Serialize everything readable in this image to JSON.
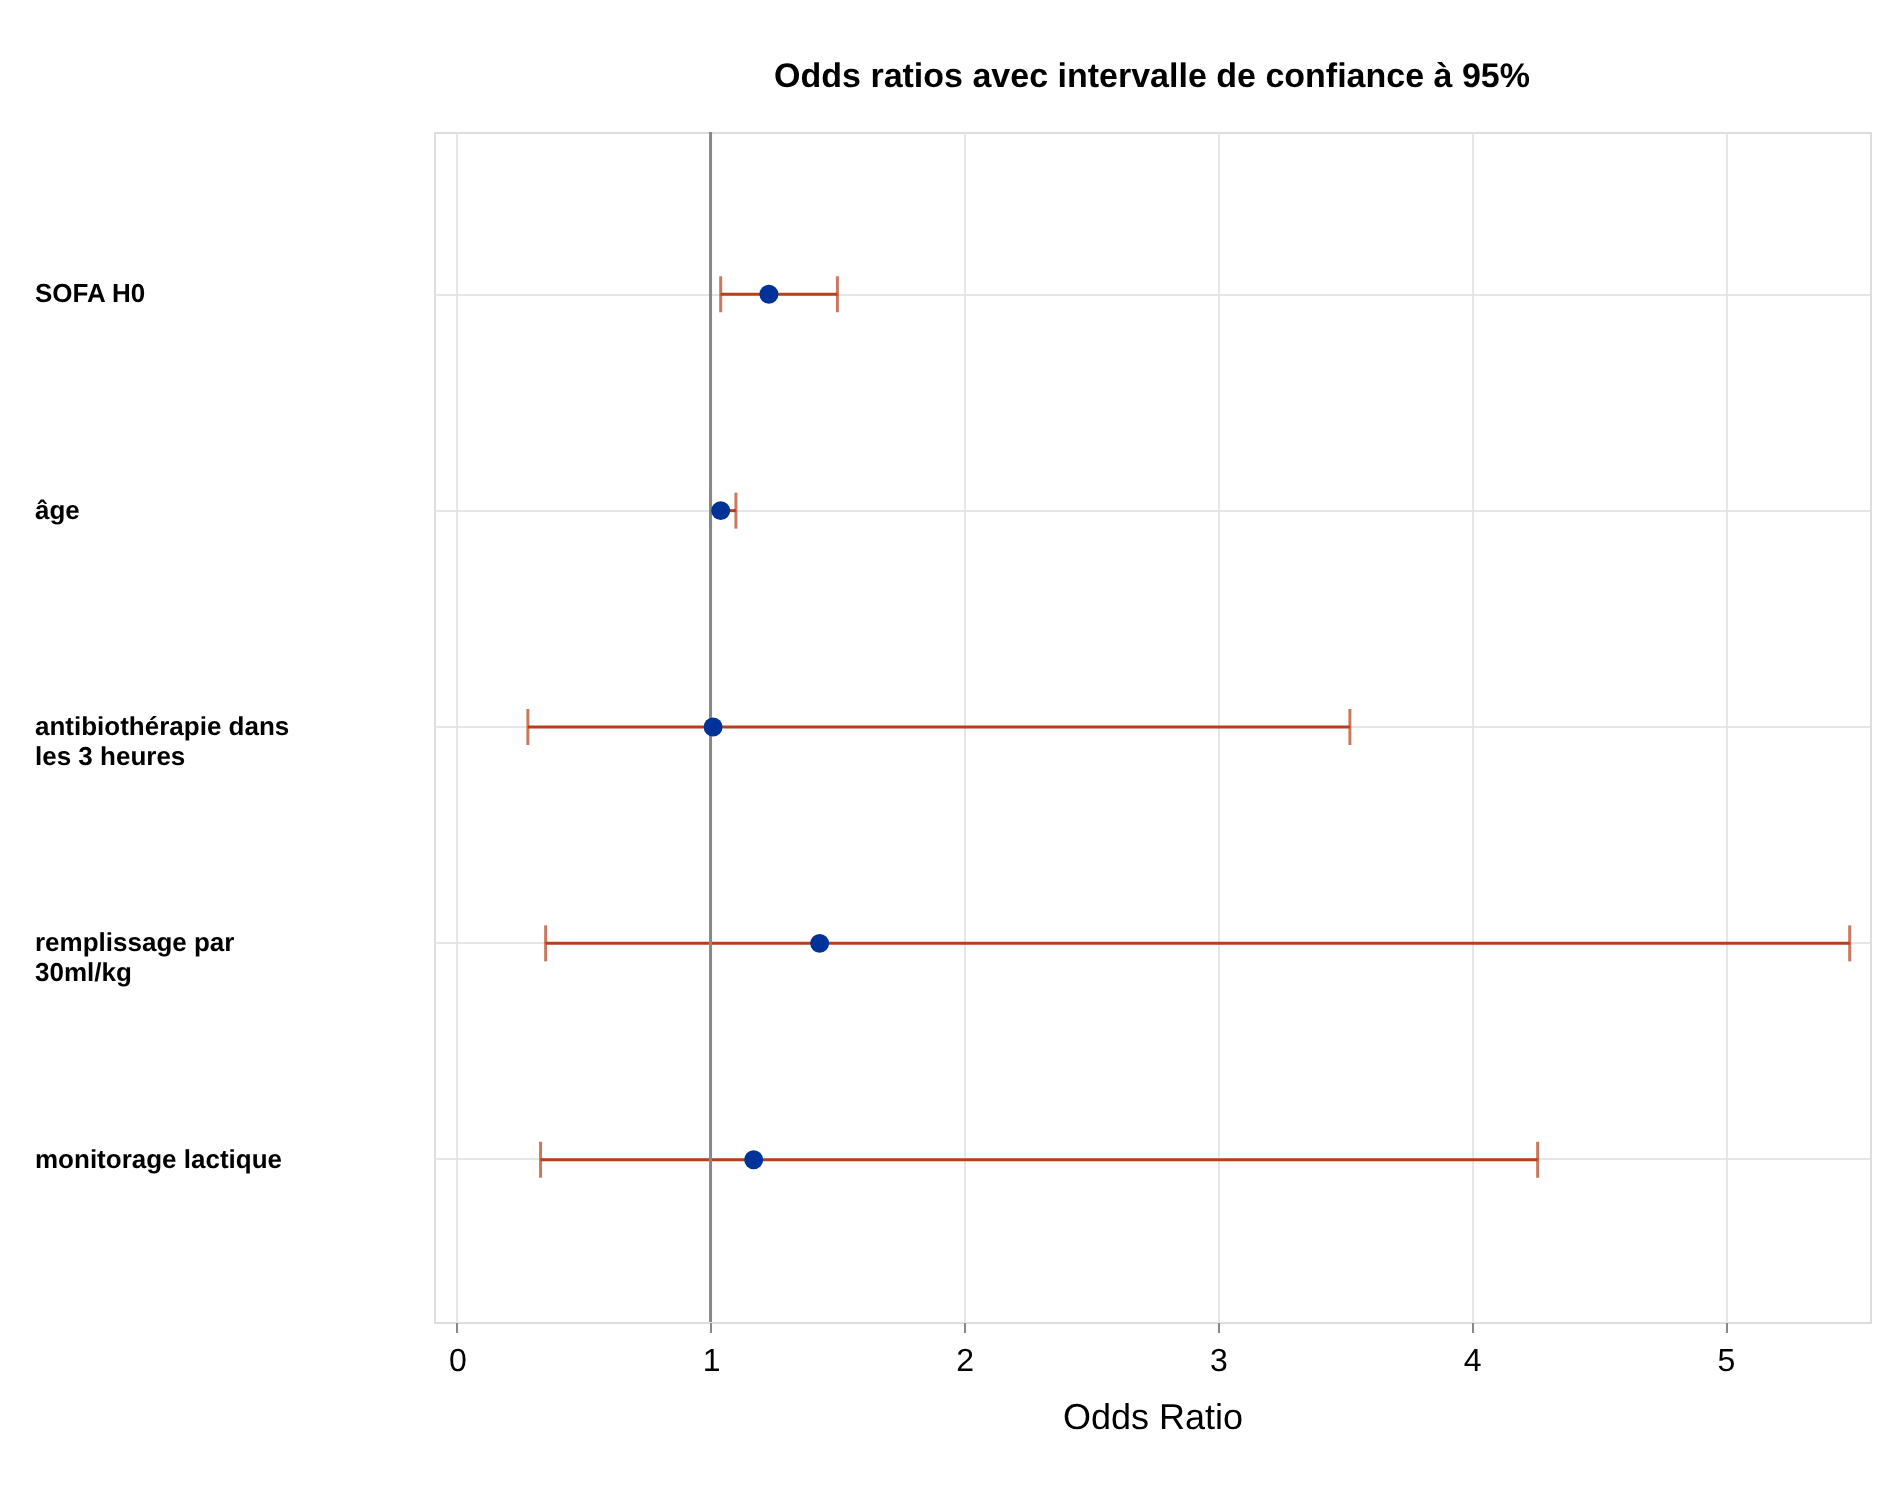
{
  "chart_data": {
    "type": "scatter",
    "title": "Odds ratios avec intervalle de confiance à 95%",
    "xlabel": "Odds Ratio",
    "orientation": "horizontal",
    "categories": [
      "SOFA H0",
      "âge",
      "antibiothérapie dans les 3 heures",
      "remplissage par 30ml/kg",
      "monitorage lactique"
    ],
    "series": [
      {
        "color": "#003399",
        "values": [
          1.23,
          1.04,
          1.01,
          1.43,
          1.17
        ],
        "errors": [
          [
            1.04,
            1.5
          ],
          [
            1.0,
            1.1
          ],
          [
            0.28,
            3.52
          ],
          [
            0.35,
            5.49
          ],
          [
            0.33,
            4.26
          ]
        ]
      }
    ],
    "xlim": [
      -0.09,
      5.57
    ],
    "xticks": [
      0,
      1,
      2,
      3,
      4,
      5
    ],
    "ref_lines": [
      {
        "axis": "x",
        "value": 1,
        "color": "#888888"
      }
    ],
    "grid": true,
    "marker": "circle"
  }
}
